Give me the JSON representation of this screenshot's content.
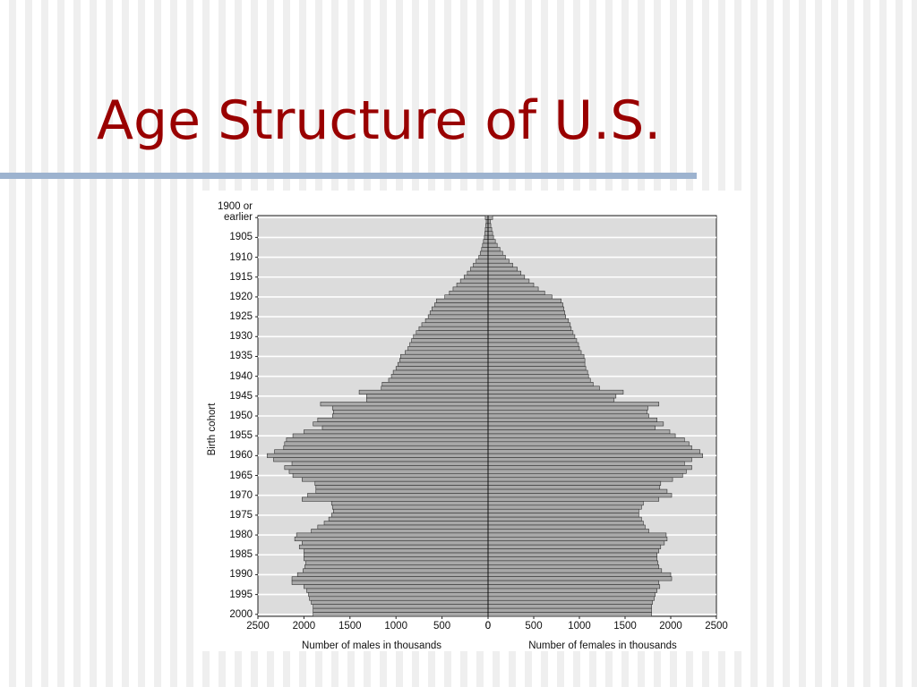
{
  "slide": {
    "title": "Age Structure of U.S."
  },
  "chart_data": {
    "type": "pyramid",
    "ylabel": "Birth cohort",
    "categories": [
      "1900 or earlier",
      null,
      null,
      null,
      null,
      "1905",
      null,
      null,
      null,
      null,
      "1910",
      null,
      null,
      null,
      null,
      "1915",
      null,
      null,
      null,
      null,
      "1920",
      null,
      null,
      null,
      null,
      "1925",
      null,
      null,
      null,
      null,
      "1930",
      null,
      null,
      null,
      null,
      "1935",
      null,
      null,
      null,
      null,
      "1940",
      null,
      null,
      null,
      null,
      "1945",
      null,
      null,
      null,
      null,
      "1950",
      null,
      null,
      null,
      null,
      "1955",
      null,
      null,
      null,
      null,
      "1960",
      null,
      null,
      null,
      null,
      "1965",
      null,
      null,
      null,
      null,
      "1970",
      null,
      null,
      null,
      null,
      "1975",
      null,
      null,
      null,
      null,
      "1980",
      null,
      null,
      null,
      null,
      "1985",
      null,
      null,
      null,
      null,
      "1990",
      null,
      null,
      null,
      null,
      "1995",
      null,
      null,
      null,
      null,
      "2000"
    ],
    "left_axis": {
      "label": "Number of males in thousands",
      "xlim": [
        2500,
        0
      ],
      "xticks": [
        2500,
        2000,
        1500,
        1000,
        500,
        0
      ]
    },
    "right_axis": {
      "label": "Number of females in thousands",
      "xlim": [
        0,
        2500
      ],
      "xticks": [
        0,
        500,
        1000,
        1500,
        2000,
        2500
      ]
    },
    "series": [
      {
        "axis": "left",
        "color": "#a9a9a9",
        "values": [
          30,
          20,
          25,
          30,
          35,
          40,
          50,
          60,
          70,
          85,
          100,
          130,
          160,
          190,
          225,
          260,
          300,
          340,
          380,
          420,
          470,
          560,
          580,
          610,
          630,
          650,
          680,
          720,
          750,
          780,
          810,
          830,
          850,
          870,
          900,
          950,
          960,
          980,
          1000,
          1030,
          1050,
          1080,
          1150,
          1160,
          1400,
          1320,
          1320,
          1820,
          1690,
          1680,
          1690,
          1850,
          1900,
          1800,
          2000,
          2120,
          2190,
          2210,
          2220,
          2320,
          2400,
          2330,
          2130,
          2210,
          2160,
          2120,
          2020,
          1880,
          1870,
          1870,
          1960,
          2020,
          1700,
          1690,
          1680,
          1700,
          1730,
          1780,
          1850,
          1920,
          2080,
          2100,
          2020,
          2050,
          2000,
          2000,
          2000,
          1980,
          1990,
          2010,
          2070,
          2130,
          2130,
          2000,
          1970,
          1950,
          1940,
          1920,
          1900,
          1900,
          1900
        ]
      },
      {
        "axis": "right",
        "color": "#a9a9a9",
        "values": [
          50,
          25,
          30,
          40,
          50,
          60,
          80,
          100,
          130,
          160,
          190,
          230,
          270,
          320,
          360,
          400,
          450,
          500,
          550,
          620,
          700,
          800,
          820,
          830,
          840,
          850,
          880,
          900,
          910,
          930,
          950,
          970,
          990,
          1000,
          1020,
          1050,
          1060,
          1060,
          1070,
          1090,
          1100,
          1120,
          1150,
          1220,
          1480,
          1400,
          1380,
          1870,
          1750,
          1740,
          1760,
          1850,
          1920,
          1830,
          1990,
          2050,
          2150,
          2200,
          2230,
          2320,
          2350,
          2230,
          2150,
          2230,
          2170,
          2130,
          2020,
          1890,
          1880,
          1960,
          2010,
          1870,
          1700,
          1680,
          1650,
          1650,
          1680,
          1700,
          1720,
          1760,
          1950,
          1960,
          1930,
          1890,
          1870,
          1850,
          1850,
          1860,
          1870,
          1900,
          2000,
          2010,
          1870,
          1880,
          1850,
          1830,
          1820,
          1800,
          1790,
          1790,
          1790
        ]
      }
    ]
  }
}
